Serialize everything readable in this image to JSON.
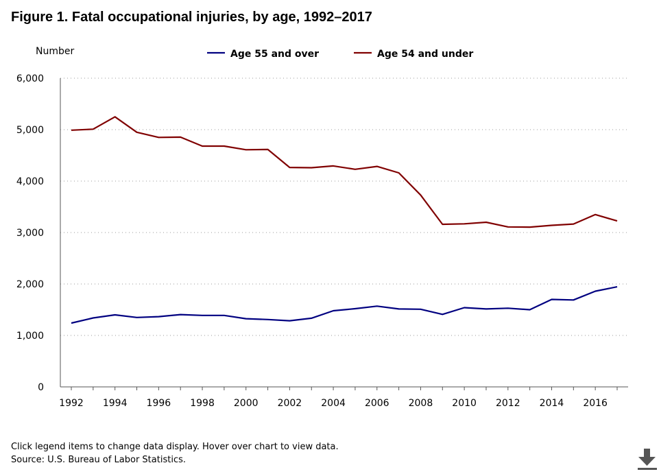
{
  "title": "Figure 1. Fatal occupational injuries, by age, 1992–2017",
  "footnotes": {
    "line1": "Click legend items to change data display. Hover over chart to view data.",
    "line2": "Source: U.S. Bureau of Labor Statistics."
  },
  "download_icon": "download-icon",
  "chart_data": {
    "type": "line",
    "ylabel": "Number",
    "xlabel": "",
    "ylim": [
      0,
      6000
    ],
    "yticks": [
      0,
      1000,
      2000,
      3000,
      4000,
      5000,
      6000
    ],
    "ytick_labels": [
      "0",
      "1,000",
      "2,000",
      "3,000",
      "4,000",
      "5,000",
      "6,000"
    ],
    "xticks": [
      1992,
      1994,
      1996,
      1998,
      2000,
      2002,
      2004,
      2006,
      2008,
      2010,
      2012,
      2014,
      2016
    ],
    "grid": true,
    "legend_placement": "top-center",
    "x": [
      1992,
      1993,
      1994,
      1995,
      1996,
      1997,
      1998,
      1999,
      2000,
      2001,
      2002,
      2003,
      2004,
      2005,
      2006,
      2007,
      2008,
      2009,
      2010,
      2011,
      2012,
      2013,
      2014,
      2015,
      2016,
      2017
    ],
    "series": [
      {
        "name": "Age 55 and over",
        "color": "#000080",
        "values": [
          1240,
          1340,
          1400,
          1350,
          1365,
          1405,
          1390,
          1390,
          1325,
          1310,
          1285,
          1335,
          1480,
          1520,
          1570,
          1515,
          1510,
          1410,
          1540,
          1515,
          1530,
          1500,
          1700,
          1690,
          1860,
          1945
        ]
      },
      {
        "name": "Age 54 and under",
        "color": "#800000",
        "values": [
          4990,
          5010,
          5250,
          4950,
          4850,
          4855,
          4680,
          4680,
          4610,
          4615,
          4265,
          4260,
          4295,
          4230,
          4285,
          4160,
          3730,
          3160,
          3170,
          3200,
          3110,
          3105,
          3140,
          3165,
          3350,
          3225
        ]
      }
    ]
  }
}
